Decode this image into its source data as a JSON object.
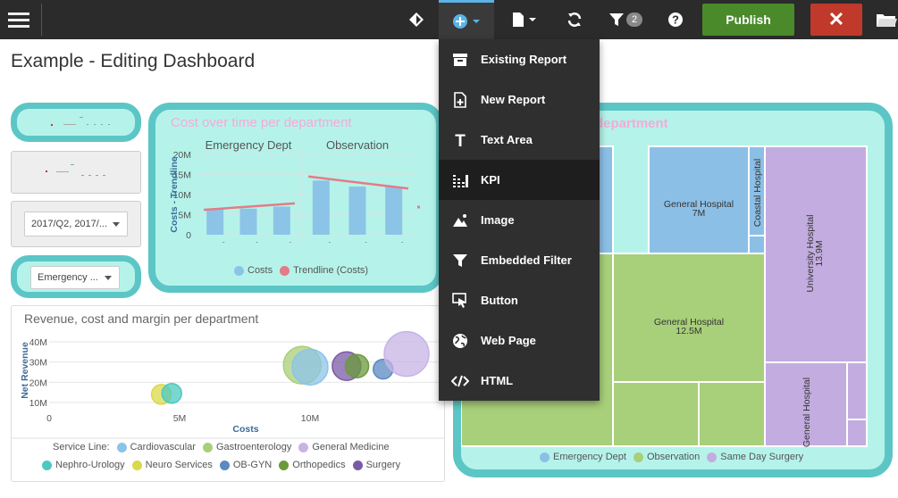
{
  "toolbar": {
    "filter_count": "2",
    "publish_label": "Publish",
    "close_label": "✕"
  },
  "page": {
    "title": "Example - Editing Dashboard"
  },
  "filters": {
    "period_value": "2017/Q2, 2017/...",
    "dept_value": "Emergency ..."
  },
  "cost_chart": {
    "title": "Cost over time per department",
    "legend": {
      "costs": "Costs",
      "trendline": "Trendline (Costs)"
    }
  },
  "bubble_chart": {
    "title": "Revenue, cost and margin per department",
    "legend_title": "Service Line:",
    "legend": [
      "Cardiovascular",
      "Gastroenterology",
      "General Medicine",
      "Nephro-Urology",
      "Neuro Services",
      "OB-GYN",
      "Orthopedics",
      "Surgery"
    ]
  },
  "treemap": {
    "title_partial": "department",
    "legend": [
      "Emergency Dept",
      "Observation",
      "Same Day Surgery"
    ]
  },
  "menu": {
    "items": [
      "Existing Report",
      "New Report",
      "Text Area",
      "KPI",
      "Image",
      "Embedded Filter",
      "Button",
      "Web Page",
      "HTML"
    ]
  },
  "colors": {
    "accent": "#5bb3e6",
    "publish": "#4a8a2a",
    "close": "#c0392b",
    "widget_bg": "#b5f3ea",
    "widget_border": "#5cc6c6"
  },
  "chart_data": [
    {
      "type": "bar",
      "title": "Cost over time per department",
      "panels": [
        "Emergency Dept",
        "Observation"
      ],
      "ylabel": "Costs - Trendline",
      "yticks": [
        "0",
        "5M",
        "10M",
        "15M",
        "20M"
      ],
      "ylim": [
        0,
        20000000
      ],
      "series": [
        {
          "name": "Costs",
          "panel": "Emergency Dept",
          "values": [
            6500000,
            6500000,
            7000000
          ]
        },
        {
          "name": "Costs",
          "panel": "Observation",
          "values": [
            13500000,
            12000000,
            12000000
          ]
        },
        {
          "name": "Trendline (Costs)",
          "panel": "Emergency Dept",
          "values": [
            6200000,
            7800000
          ]
        },
        {
          "name": "Trendline (Costs)",
          "panel": "Observation",
          "values": [
            14500000,
            11500000
          ]
        }
      ]
    },
    {
      "type": "scatter",
      "title": "Revenue, cost and margin per department",
      "xlabel": "Costs",
      "ylabel": "Net Revenue",
      "xticks": [
        "0",
        "5M",
        "10M"
      ],
      "yticks": [
        "10M",
        "20M",
        "30M",
        "40M"
      ],
      "points": [
        {
          "x": 4300000,
          "y": 14000000,
          "r": 11,
          "color": "#d9d94a"
        },
        {
          "x": 4700000,
          "y": 14500000,
          "r": 11,
          "color": "#4cc9c0"
        },
        {
          "x": 9700000,
          "y": 28500000,
          "r": 21,
          "color": "#a8cf7a"
        },
        {
          "x": 10000000,
          "y": 27500000,
          "r": 20,
          "color": "#8cc4e8"
        },
        {
          "x": 11400000,
          "y": 28000000,
          "r": 16,
          "color": "#7a5aa6"
        },
        {
          "x": 11800000,
          "y": 28000000,
          "r": 13,
          "color": "#6a9a3a"
        },
        {
          "x": 12800000,
          "y": 26500000,
          "r": 11,
          "color": "#5a8ac0"
        },
        {
          "x": 13700000,
          "y": 34000000,
          "r": 25,
          "color": "#c7b3e6"
        }
      ]
    },
    {
      "type": "treemap",
      "cells": [
        {
          "label": "General Hospital",
          "value": "7M"
        },
        {
          "label": "Coastal Hospital",
          "value": ""
        },
        {
          "label": "University Hospital",
          "value": "13.9M"
        },
        {
          "label": "General Hospital",
          "value": "12.5M"
        },
        {
          "label": "General Hospital",
          "value": ""
        }
      ]
    }
  ]
}
